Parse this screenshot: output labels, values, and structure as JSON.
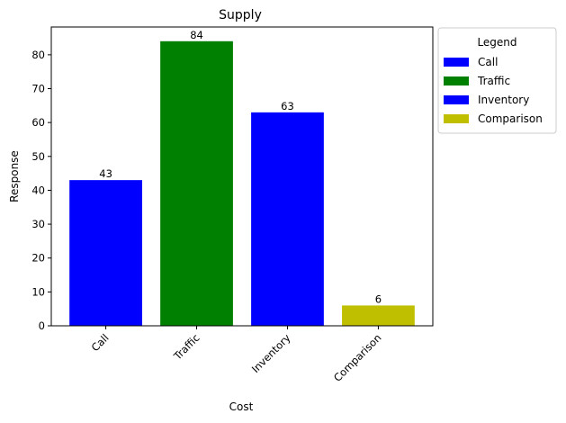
{
  "chart_data": {
    "type": "bar",
    "title": "Supply",
    "xlabel": "Cost",
    "ylabel": "Response",
    "categories": [
      "Call",
      "Traffic",
      "Inventory",
      "Comparison"
    ],
    "values": [
      43,
      84,
      63,
      6
    ],
    "colors": [
      "#0000ff",
      "#008000",
      "#0000ff",
      "#bfbf00"
    ],
    "ylim": [
      0,
      88.2
    ],
    "yticks": [
      0,
      10,
      20,
      30,
      40,
      50,
      60,
      70,
      80
    ],
    "grid": false,
    "legend": {
      "title": "Legend",
      "placement": "outside-right-top",
      "entries": [
        "Call",
        "Traffic",
        "Inventory",
        "Comparison"
      ]
    }
  }
}
